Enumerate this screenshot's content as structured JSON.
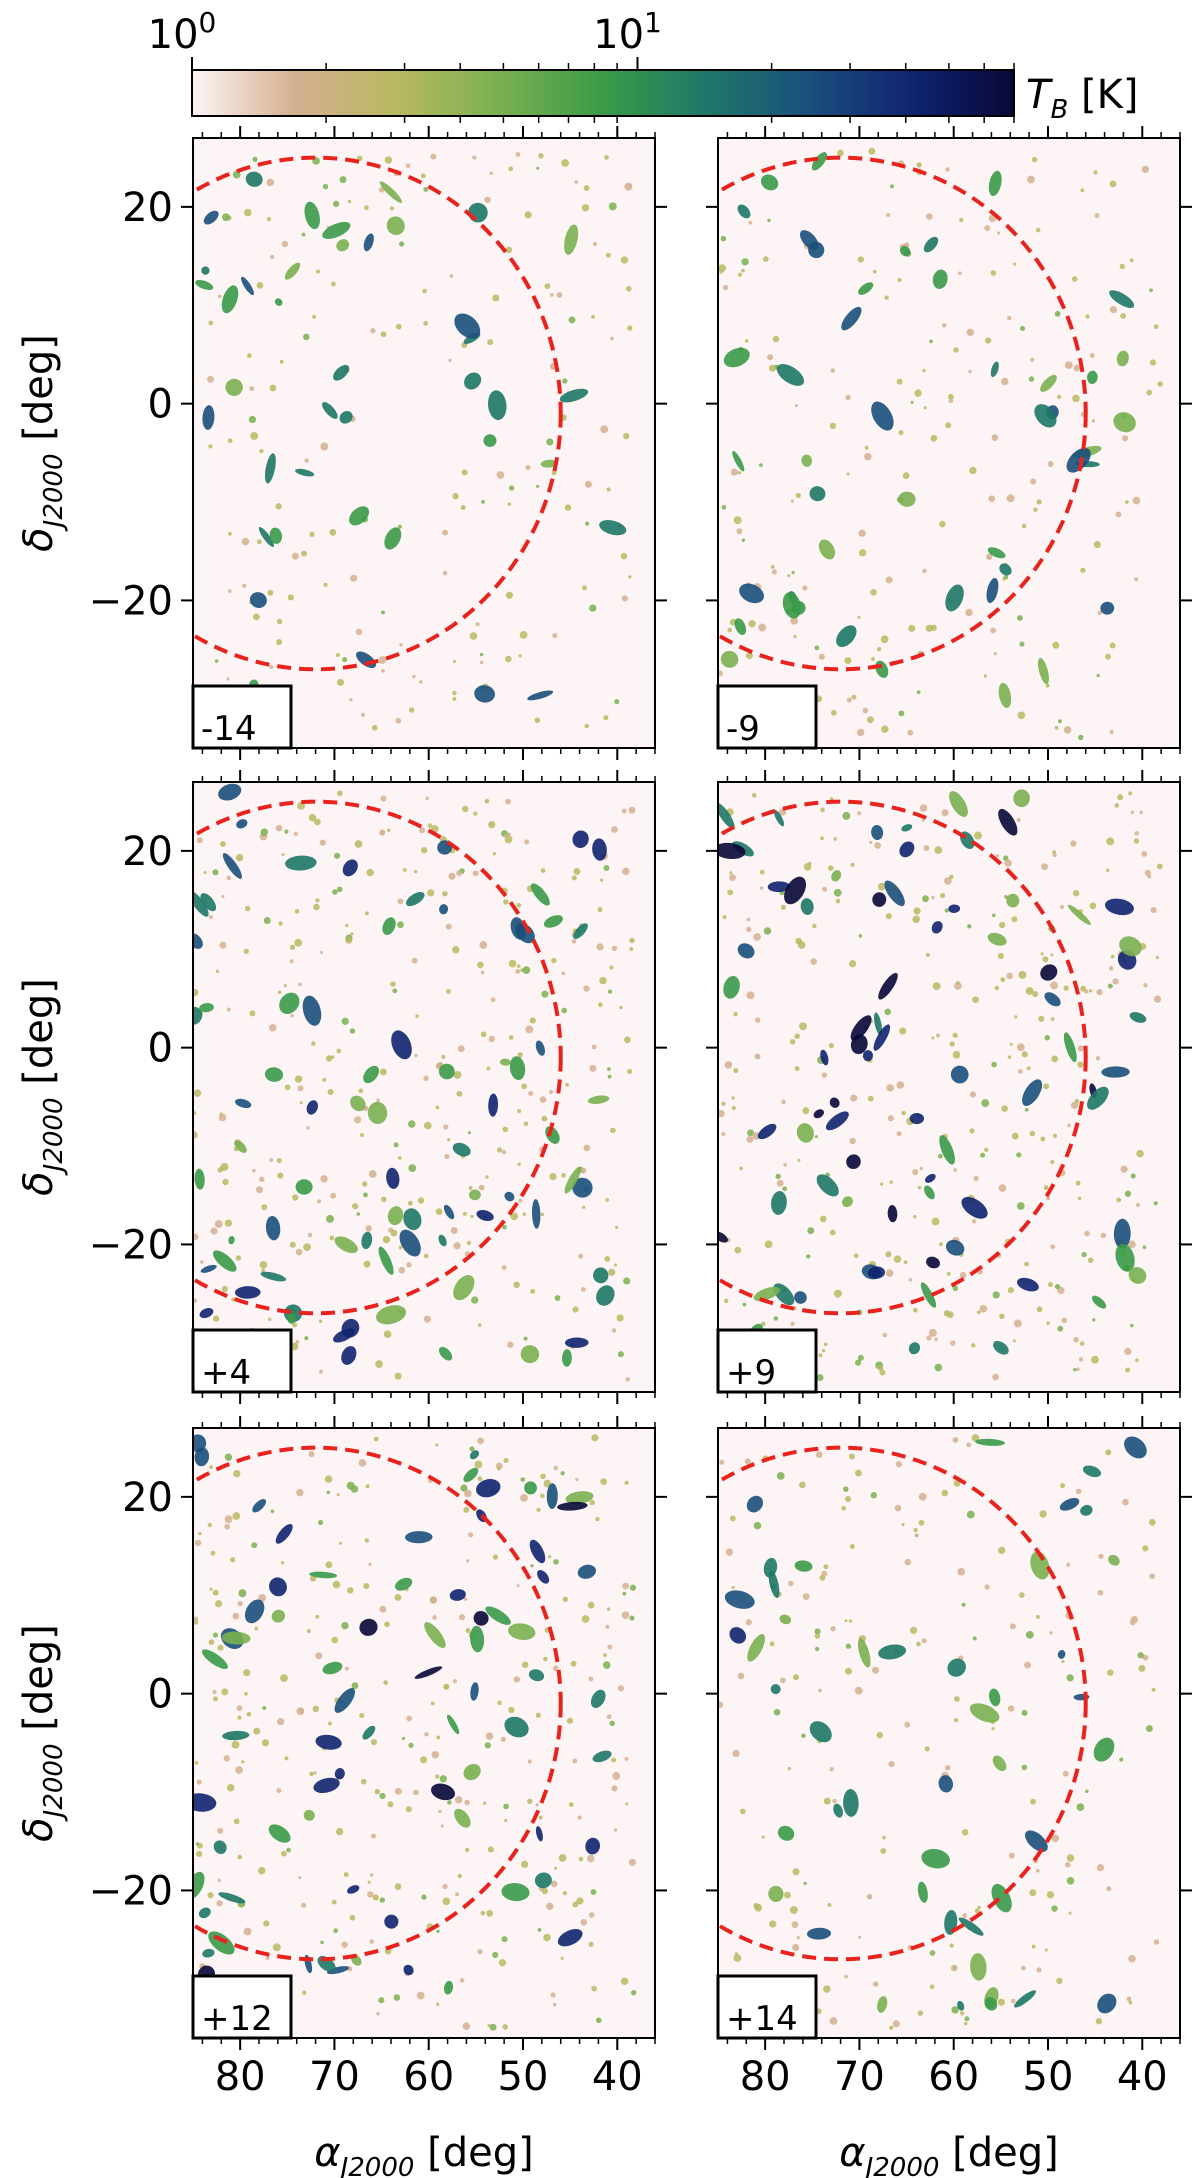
{
  "chart_data": {
    "type": "heatmap",
    "description_units": {
      "x": "deg",
      "y": "deg"
    },
    "colorbar": {
      "label_main": "T",
      "label_sub": "B",
      "label_unit": " [K]",
      "scale": "log",
      "range": [
        1,
        70
      ],
      "ticks": [
        {
          "value": 1,
          "label_base": "10",
          "label_exp": "0"
        },
        {
          "value": 10,
          "label_base": "10",
          "label_exp": "1"
        }
      ],
      "colors": [
        "#fdf5f5",
        "#d4b090",
        "#b8b860",
        "#7ab050",
        "#3a9a48",
        "#1e7868",
        "#1a4f7c",
        "#0f2470",
        "#080838"
      ]
    },
    "xlabel": {
      "main": "α",
      "sub": "J2000",
      "unit": " [deg]"
    },
    "ylabel": {
      "main": "δ",
      "sub": "J2000",
      "unit": " [deg]"
    },
    "xlim": [
      85,
      36
    ],
    "ylim": [
      -35,
      27
    ],
    "x_ticks": [
      {
        "value": 80,
        "label": "80"
      },
      {
        "value": 70,
        "label": "70"
      },
      {
        "value": 60,
        "label": "60"
      },
      {
        "value": 50,
        "label": "50"
      },
      {
        "value": 40,
        "label": "40"
      }
    ],
    "y_ticks": [
      {
        "value": 20,
        "label": "20"
      },
      {
        "value": 0,
        "label": "0"
      },
      {
        "value": -20,
        "label": "−20"
      }
    ],
    "circle": {
      "center_ra": 72,
      "center_dec": -1,
      "radius_ra": 26,
      "radius_dec": 26,
      "color": "#e8231e",
      "style": "dashed"
    },
    "panels": [
      {
        "velocity_label": "-14",
        "col": 0,
        "row": 0,
        "intensity": 0.45,
        "dark_fraction": 0.0
      },
      {
        "velocity_label": "-9",
        "col": 1,
        "row": 0,
        "intensity": 0.5,
        "dark_fraction": 0.0
      },
      {
        "velocity_label": "+4",
        "col": 0,
        "row": 1,
        "intensity": 0.85,
        "dark_fraction": 0.25
      },
      {
        "velocity_label": "+9",
        "col": 1,
        "row": 1,
        "intensity": 0.85,
        "dark_fraction": 0.35
      },
      {
        "velocity_label": "+12",
        "col": 0,
        "row": 2,
        "intensity": 0.8,
        "dark_fraction": 0.3
      },
      {
        "velocity_label": "+14",
        "col": 1,
        "row": 2,
        "intensity": 0.5,
        "dark_fraction": 0.02
      }
    ]
  }
}
